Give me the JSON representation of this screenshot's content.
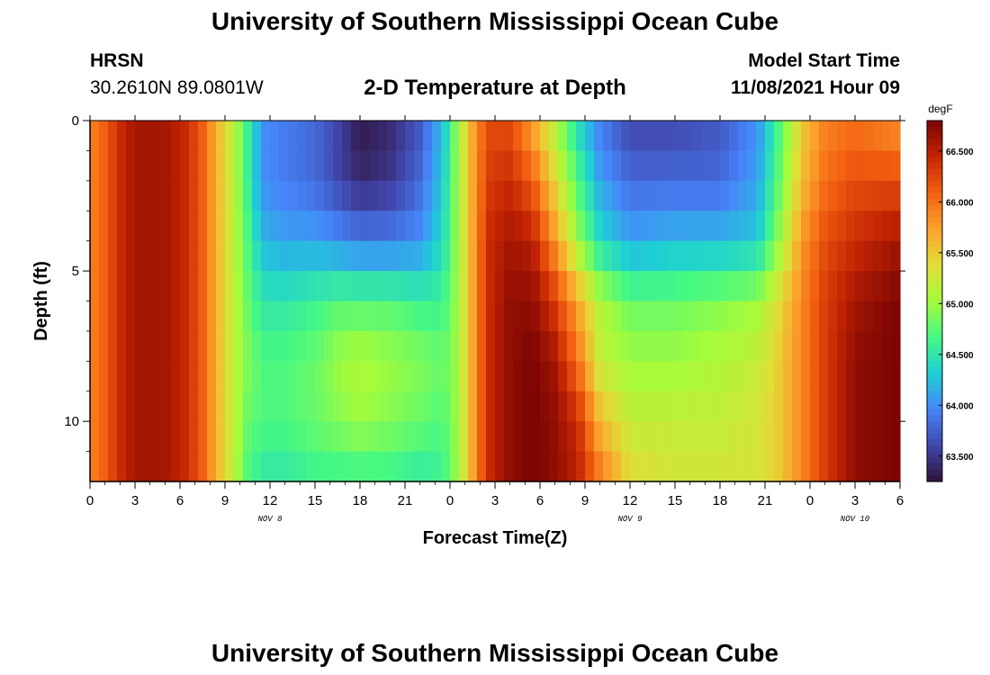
{
  "header": {
    "title": "University of Southern Mississippi Ocean Cube",
    "station": "HRSN",
    "coords": "30.2610N  89.0801W",
    "subtitle": "2-D Temperature at Depth",
    "start_label": "Model Start Time",
    "start_value": "11/08/2021 Hour 09"
  },
  "footer": {
    "title": "University of Southern Mississippi Ocean Cube"
  },
  "chart_data": {
    "type": "heatmap",
    "title": "2-D Temperature at Depth",
    "xlabel": "Forecast Time(Z)",
    "ylabel": "Depth (ft)",
    "x_range_hours": [
      0,
      54
    ],
    "x_ticks": [
      {
        "h": 0,
        "label": "0"
      },
      {
        "h": 3,
        "label": "3"
      },
      {
        "h": 6,
        "label": "6"
      },
      {
        "h": 9,
        "label": "9"
      },
      {
        "h": 12,
        "label": "12"
      },
      {
        "h": 15,
        "label": "15"
      },
      {
        "h": 18,
        "label": "18"
      },
      {
        "h": 21,
        "label": "21"
      },
      {
        "h": 24,
        "label": "0"
      },
      {
        "h": 27,
        "label": "3"
      },
      {
        "h": 30,
        "label": "6"
      },
      {
        "h": 33,
        "label": "9"
      },
      {
        "h": 36,
        "label": "12"
      },
      {
        "h": 39,
        "label": "15"
      },
      {
        "h": 42,
        "label": "18"
      },
      {
        "h": 45,
        "label": "21"
      },
      {
        "h": 48,
        "label": "0"
      },
      {
        "h": 51,
        "label": "3"
      },
      {
        "h": 54,
        "label": "6"
      }
    ],
    "day_labels": [
      {
        "h": 12,
        "label": "NOV 8"
      },
      {
        "h": 36,
        "label": "NOV 9"
      },
      {
        "h": 51,
        "label": "NOV 10"
      }
    ],
    "y_range_ft": [
      0,
      12
    ],
    "y_ticks": [
      {
        "v": 0,
        "label": "0"
      },
      {
        "v": 5,
        "label": "5"
      },
      {
        "v": 10,
        "label": "10"
      }
    ],
    "colorbar": {
      "unit": "degF",
      "range": [
        63.25,
        66.8
      ],
      "ticks": [
        "63.500",
        "64.000",
        "64.500",
        "65.000",
        "65.500",
        "66.000",
        "66.500"
      ],
      "tick_values": [
        63.5,
        64.0,
        64.5,
        65.0,
        65.5,
        66.0,
        66.5
      ]
    },
    "profile_depths_ft": [
      0,
      2,
      4,
      6,
      8,
      10,
      12
    ],
    "temperature_profiles_degF": [
      {
        "h": 0,
        "t": [
          65.9,
          65.9,
          65.9,
          65.9,
          65.9,
          65.9,
          65.9
        ]
      },
      {
        "h": 1,
        "t": [
          66.1,
          66.1,
          66.1,
          66.1,
          66.1,
          66.1,
          66.1
        ]
      },
      {
        "h": 2,
        "t": [
          66.4,
          66.4,
          66.4,
          66.4,
          66.4,
          66.4,
          66.4
        ]
      },
      {
        "h": 3,
        "t": [
          66.6,
          66.6,
          66.6,
          66.6,
          66.6,
          66.6,
          66.6
        ]
      },
      {
        "h": 5,
        "t": [
          66.6,
          66.6,
          66.6,
          66.6,
          66.6,
          66.6,
          66.6
        ]
      },
      {
        "h": 6.5,
        "t": [
          66.4,
          66.4,
          66.4,
          66.4,
          66.4,
          66.4,
          66.4
        ]
      },
      {
        "h": 7.5,
        "t": [
          66.1,
          66.1,
          66.1,
          66.1,
          66.1,
          66.1,
          66.1
        ]
      },
      {
        "h": 8.5,
        "t": [
          65.6,
          65.6,
          65.6,
          65.6,
          65.6,
          65.6,
          65.6
        ]
      },
      {
        "h": 9.5,
        "t": [
          65.2,
          65.2,
          65.2,
          65.2,
          65.2,
          65.2,
          65.2
        ]
      },
      {
        "h": 10.5,
        "t": [
          64.6,
          64.6,
          64.7,
          64.8,
          64.9,
          64.8,
          64.7
        ]
      },
      {
        "h": 11.5,
        "t": [
          64.0,
          64.0,
          64.2,
          64.5,
          64.7,
          64.7,
          64.5
        ]
      },
      {
        "h": 13,
        "t": [
          63.9,
          63.9,
          64.1,
          64.5,
          64.7,
          64.7,
          64.5
        ]
      },
      {
        "h": 15,
        "t": [
          63.8,
          63.8,
          64.1,
          64.6,
          64.8,
          64.8,
          64.6
        ]
      },
      {
        "h": 16.5,
        "t": [
          63.6,
          63.6,
          64.0,
          64.7,
          65.0,
          64.9,
          64.6
        ]
      },
      {
        "h": 18,
        "t": [
          63.3,
          63.4,
          63.9,
          64.7,
          65.1,
          65.0,
          64.6
        ]
      },
      {
        "h": 20,
        "t": [
          63.4,
          63.5,
          63.9,
          64.7,
          65.0,
          64.9,
          64.6
        ]
      },
      {
        "h": 22,
        "t": [
          63.7,
          63.8,
          64.0,
          64.6,
          64.9,
          64.8,
          64.5
        ]
      },
      {
        "h": 23.5,
        "t": [
          64.2,
          64.3,
          64.4,
          64.6,
          64.8,
          64.7,
          64.6
        ]
      },
      {
        "h": 24.5,
        "t": [
          65.0,
          65.0,
          65.0,
          65.0,
          65.0,
          65.0,
          65.0
        ]
      },
      {
        "h": 25.5,
        "t": [
          65.7,
          65.7,
          65.7,
          65.7,
          65.7,
          65.7,
          65.7
        ]
      },
      {
        "h": 26.5,
        "t": [
          66.2,
          66.3,
          66.4,
          66.4,
          66.4,
          66.4,
          66.4
        ]
      },
      {
        "h": 28,
        "t": [
          66.2,
          66.4,
          66.6,
          66.7,
          66.7,
          66.7,
          66.7
        ]
      },
      {
        "h": 29.5,
        "t": [
          65.7,
          66.1,
          66.5,
          66.7,
          66.8,
          66.8,
          66.8
        ]
      },
      {
        "h": 31,
        "t": [
          65.1,
          65.4,
          65.8,
          66.3,
          66.6,
          66.7,
          66.7
        ]
      },
      {
        "h": 32.5,
        "t": [
          64.4,
          64.7,
          65.0,
          65.7,
          66.0,
          66.4,
          66.5
        ]
      },
      {
        "h": 34,
        "t": [
          63.9,
          64.1,
          64.4,
          65.1,
          65.2,
          65.6,
          66.0
        ]
      },
      {
        "h": 36,
        "t": [
          63.6,
          63.8,
          64.1,
          64.8,
          65.0,
          65.2,
          65.4
        ]
      },
      {
        "h": 39,
        "t": [
          63.6,
          63.8,
          64.2,
          64.8,
          65.0,
          65.2,
          65.3
        ]
      },
      {
        "h": 42,
        "t": [
          63.7,
          63.8,
          64.2,
          64.9,
          65.1,
          65.2,
          65.3
        ]
      },
      {
        "h": 44.5,
        "t": [
          64.0,
          64.1,
          64.3,
          65.0,
          65.2,
          65.3,
          65.3
        ]
      },
      {
        "h": 46,
        "t": [
          64.7,
          64.8,
          65.0,
          65.4,
          65.5,
          65.5,
          65.5
        ]
      },
      {
        "h": 47.5,
        "t": [
          65.5,
          65.6,
          65.8,
          65.9,
          65.9,
          65.9,
          65.9
        ]
      },
      {
        "h": 49,
        "t": [
          65.9,
          66.0,
          66.2,
          66.3,
          66.3,
          66.3,
          66.3
        ]
      },
      {
        "h": 51,
        "t": [
          66.0,
          66.2,
          66.4,
          66.6,
          66.7,
          66.7,
          66.7
        ]
      },
      {
        "h": 54,
        "t": [
          65.8,
          66.2,
          66.6,
          66.8,
          66.8,
          66.8,
          66.8
        ]
      }
    ],
    "colors": {
      "scale": [
        "#30123b",
        "#4146ac",
        "#4686fb",
        "#1ecfd5",
        "#46f884",
        "#a4fc3b",
        "#e1dd37",
        "#fca22c",
        "#f26011",
        "#c42503",
        "#7a0403"
      ]
    }
  }
}
